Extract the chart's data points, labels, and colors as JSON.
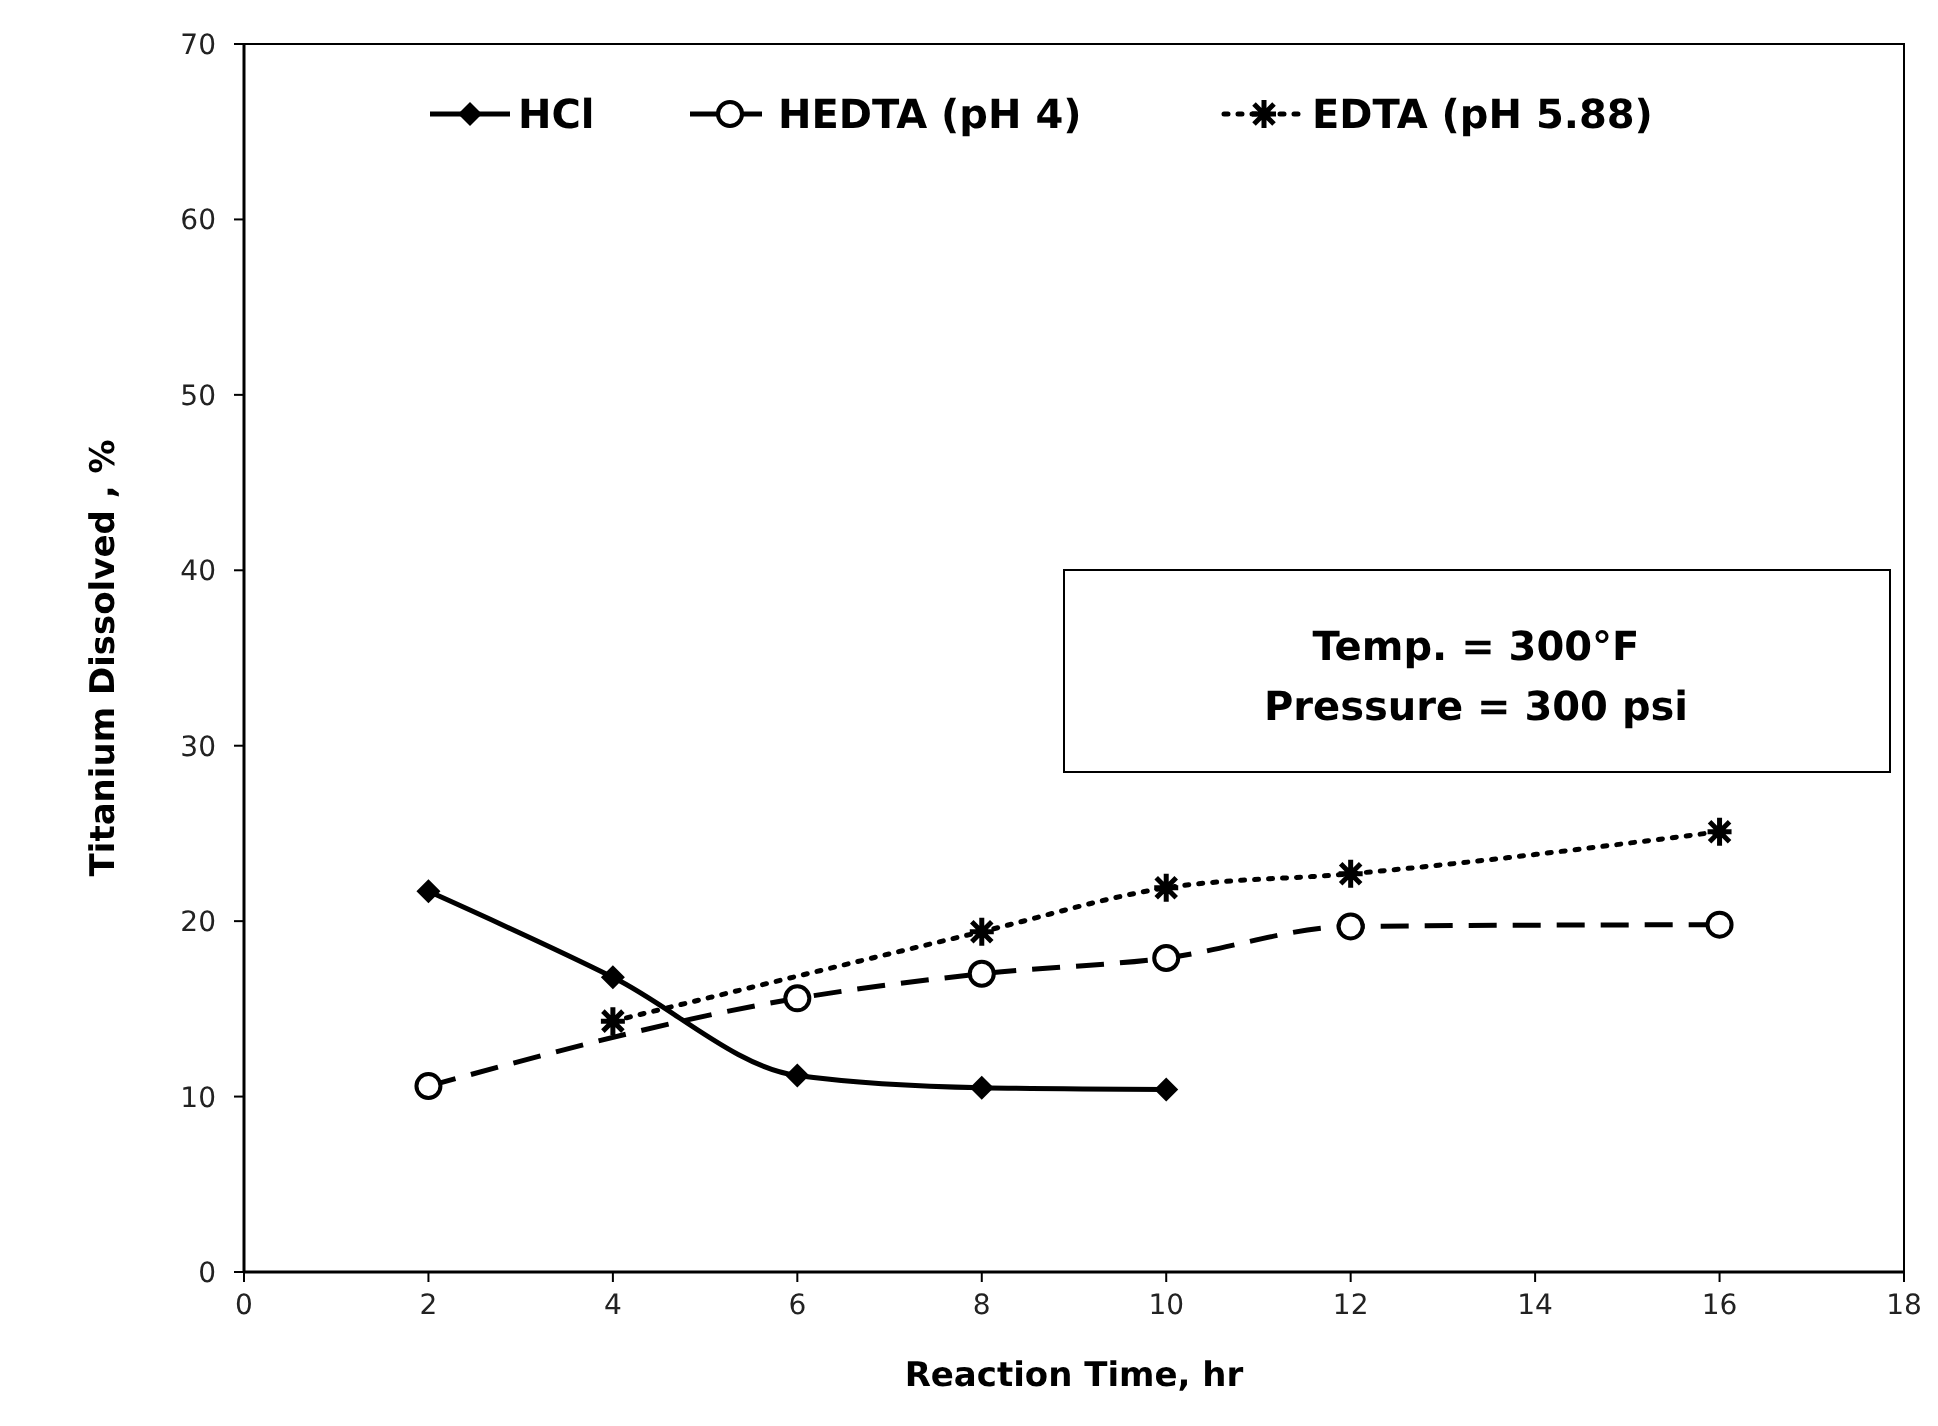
{
  "chart_data": {
    "type": "line",
    "xlabel": "Reaction Time, hr",
    "ylabel": "Titanium Dissolved , %",
    "xlim": [
      0,
      18
    ],
    "xticks": [
      0,
      2,
      4,
      6,
      8,
      10,
      12,
      14,
      16,
      18
    ],
    "ylim": [
      0,
      70
    ],
    "yticks": [
      0,
      10,
      20,
      30,
      40,
      50,
      60,
      70
    ],
    "grid": false,
    "legend": "top",
    "series": [
      {
        "name": "HCl",
        "color": "#000000",
        "marker": "diamond",
        "line_style": "solid",
        "x": [
          2,
          4,
          6,
          8,
          10
        ],
        "values": [
          21.7,
          16.8,
          11.2,
          10.5,
          10.4
        ]
      },
      {
        "name": "HEDTA (pH 4)",
        "color": "#000000",
        "marker": "circle",
        "line_style": "dashed",
        "x": [
          2,
          6,
          8,
          10,
          12,
          16
        ],
        "values": [
          10.6,
          15.6,
          17.0,
          17.9,
          19.7,
          19.8
        ]
      },
      {
        "name": "EDTA (pH 5.88)",
        "color": "#000000",
        "marker": "cross",
        "line_style": "dotted",
        "x": [
          4,
          8,
          10,
          12,
          16
        ],
        "values": [
          14.3,
          19.4,
          21.9,
          22.7,
          25.1
        ]
      }
    ],
    "annotations": [
      "Temp. = 300°F",
      "Pressure = 300 psi"
    ]
  }
}
